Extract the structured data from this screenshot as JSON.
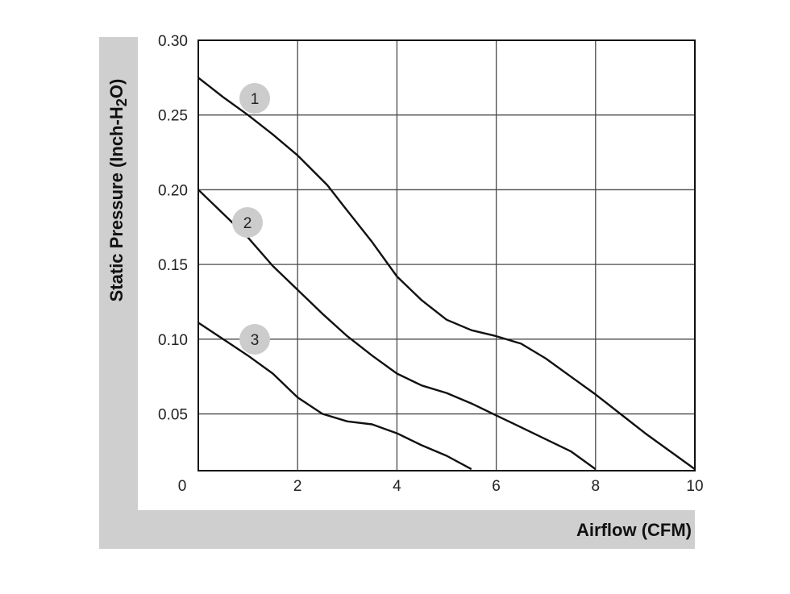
{
  "chart_data": {
    "type": "line",
    "xlabel": "Airflow (CFM)",
    "ylabel_parts": {
      "pre": "Static Pressure (Inch-H",
      "sub": "2",
      "post": "O)"
    },
    "xlim": [
      0,
      10
    ],
    "ylim": [
      0.012,
      0.3
    ],
    "grid": true,
    "x_ticks": [
      2,
      4,
      6,
      8,
      10
    ],
    "x_tick_labels": [
      "2",
      "4",
      "6",
      "8",
      "10"
    ],
    "origin_label": "0",
    "y_ticks": [
      0.3,
      0.25,
      0.2,
      0.15,
      0.1,
      0.05
    ],
    "y_tick_labels": [
      "0.30",
      "0.25",
      "0.20",
      "0.15",
      "0.10",
      "0.05"
    ],
    "series": [
      {
        "name": "1",
        "x": [
          0,
          0.5,
          1,
          1.5,
          2,
          2.6,
          3,
          3.5,
          4,
          4.5,
          5,
          5.5,
          6,
          6.5,
          7,
          7.5,
          8,
          8.5,
          9,
          9.5,
          10
        ],
        "y": [
          0.275,
          0.262,
          0.25,
          0.237,
          0.223,
          0.203,
          0.186,
          0.165,
          0.142,
          0.126,
          0.113,
          0.106,
          0.102,
          0.097,
          0.087,
          0.075,
          0.063,
          0.05,
          0.037,
          0.025,
          0.013
        ]
      },
      {
        "name": "2",
        "x": [
          0,
          0.5,
          1,
          1.5,
          2,
          2.5,
          3,
          3.5,
          4,
          4.5,
          5,
          5.5,
          6,
          6.5,
          7,
          7.5,
          8
        ],
        "y": [
          0.2,
          0.184,
          0.168,
          0.149,
          0.133,
          0.117,
          0.102,
          0.089,
          0.077,
          0.069,
          0.064,
          0.057,
          0.049,
          0.041,
          0.033,
          0.025,
          0.013
        ]
      },
      {
        "name": "3",
        "x": [
          0,
          0.5,
          1,
          1.5,
          2,
          2.5,
          3,
          3.5,
          4,
          4.5,
          5,
          5.5
        ],
        "y": [
          0.111,
          0.1,
          0.089,
          0.077,
          0.061,
          0.05,
          0.045,
          0.043,
          0.037,
          0.029,
          0.022,
          0.013
        ]
      }
    ],
    "colors": {
      "line": "#111111",
      "grid": "#4a4a4a",
      "badge": "#cccccc",
      "band": "#cfcfcf"
    }
  }
}
